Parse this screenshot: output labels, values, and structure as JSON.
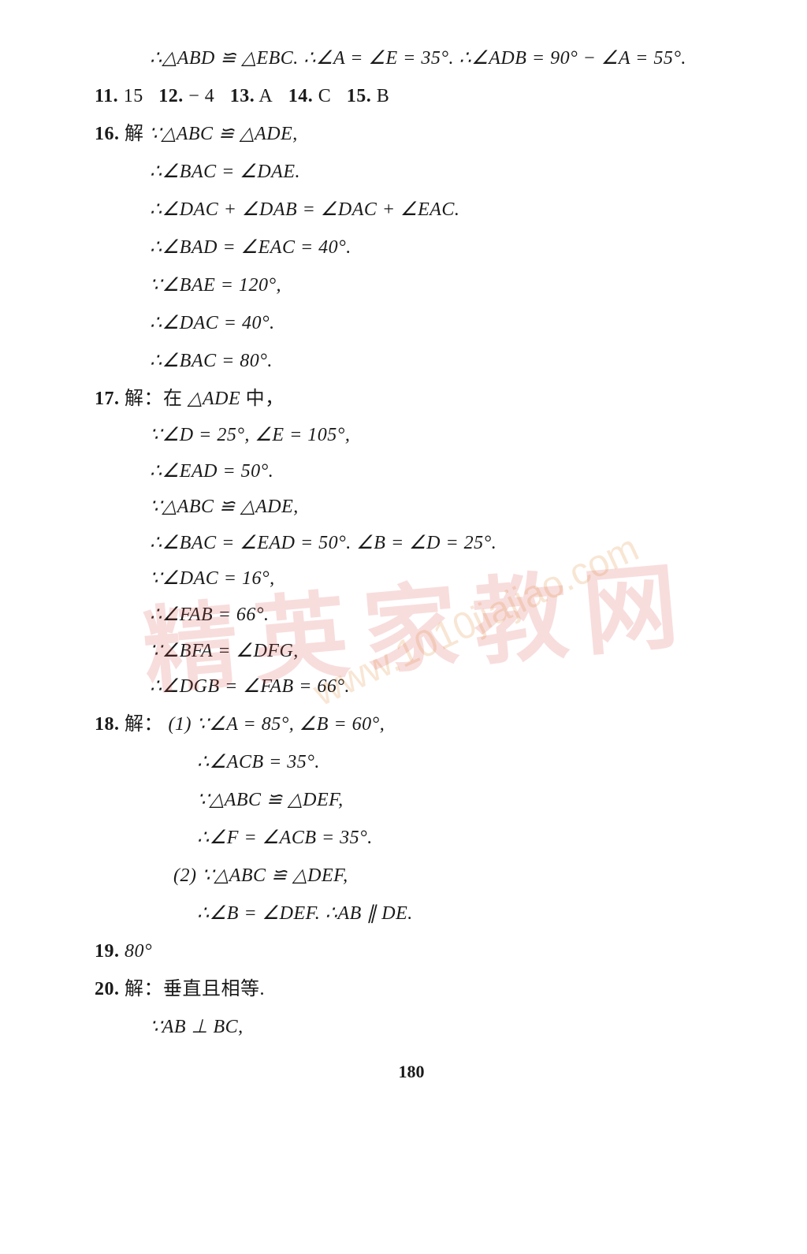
{
  "pageNumber": "180",
  "watermark": {
    "cn": "精英家教网",
    "url": "www.1010jiajiao.com"
  },
  "lines": {
    "l1": "∴△ABD ≌ △EBC. ∴∠A = ∠E = 35°. ∴∠ADB = 90° − ∠A = 55°.",
    "l2_11": "11.",
    "l2_11v": "15",
    "l2_12": "12.",
    "l2_12v": "− 4",
    "l2_13": "13.",
    "l2_13v": "A",
    "l2_14": "14.",
    "l2_14v": "C",
    "l2_15": "15.",
    "l2_15v": "B",
    "l3_num": "16.",
    "l3_cn": "解 ",
    "l3": "∵△ABC ≌ △ADE,",
    "l4": "∴∠BAC = ∠DAE.",
    "l5": "∴∠DAC + ∠DAB = ∠DAC + ∠EAC.",
    "l6": "∴∠BAD = ∠EAC = 40°.",
    "l7": "∵∠BAE = 120°,",
    "l8": "∴∠DAC = 40°.",
    "l9": "∴∠BAC = 80°.",
    "l10_num": "17.",
    "l10_cn": "解：在 ",
    "l10": "△ADE ",
    "l10_cn2": "中，",
    "l11": "∵∠D = 25°, ∠E = 105°,",
    "l12": "∴∠EAD = 50°.",
    "l13": "∵△ABC ≌ △ADE,",
    "l14": "∴∠BAC = ∠EAD = 50°. ∠B = ∠D = 25°.",
    "l15": "∵∠DAC = 16°,",
    "l16": "∴∠FAB = 66°.",
    "l17": "∵∠BFA = ∠DFG,",
    "l18": "∴∠DGB = ∠FAB = 66°.",
    "l19_num": "18.",
    "l19_cn": "解：",
    "l19": "(1) ∵∠A = 85°, ∠B = 60°,",
    "l20": "∴∠ACB = 35°.",
    "l21": "∵△ABC ≌ △DEF,",
    "l22": "∴∠F = ∠ACB = 35°.",
    "l23_p": "(2) ",
    "l23": "∵△ABC ≌ △DEF,",
    "l24": "∴∠B = ∠DEF. ∴AB ∥ DE.",
    "l25_num": "19.",
    "l25": "80°",
    "l26_num": "20.",
    "l26_cn": "解：垂直且相等.",
    "l27": "∵AB ⊥ BC,"
  }
}
